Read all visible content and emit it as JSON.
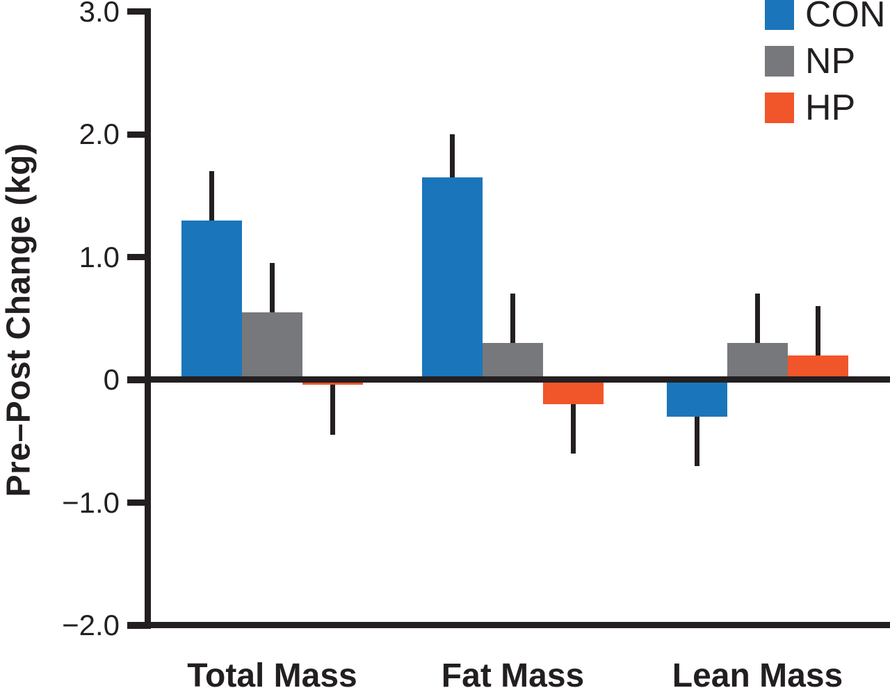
{
  "chart_data": {
    "type": "bar",
    "title": "",
    "xlabel": "",
    "ylabel": "Pre–Post Change (kg)",
    "categories": [
      "Total Mass",
      "Fat Mass",
      "Lean Mass"
    ],
    "series": [
      {
        "name": "CON",
        "color": "#1B75BB",
        "values": [
          1.3,
          1.65,
          -0.3
        ],
        "error_ends": [
          1.7,
          2.0,
          -0.7
        ]
      },
      {
        "name": "NP",
        "color": "#77787B",
        "values": [
          0.55,
          0.3,
          0.3
        ],
        "error_ends": [
          0.95,
          0.7,
          0.7
        ]
      },
      {
        "name": "HP",
        "color": "#F1552A",
        "values": [
          -0.04,
          -0.2,
          0.2
        ],
        "error_ends": [
          -0.45,
          -0.6,
          0.6
        ]
      }
    ],
    "ylim": [
      -2.0,
      3.0
    ],
    "yticks": [
      3.0,
      2.0,
      1.0,
      0,
      -1.0,
      -2.0
    ],
    "ytick_labels": [
      "3.0",
      "2.0",
      "1.0",
      "0",
      "−1.0",
      "−2.0"
    ],
    "error_bar_style": "one-sided, extending away from zero, no caps",
    "legend_position": "top-right",
    "grid": false,
    "axis_color": "#231F20",
    "background_color": "#FFFFFF"
  }
}
